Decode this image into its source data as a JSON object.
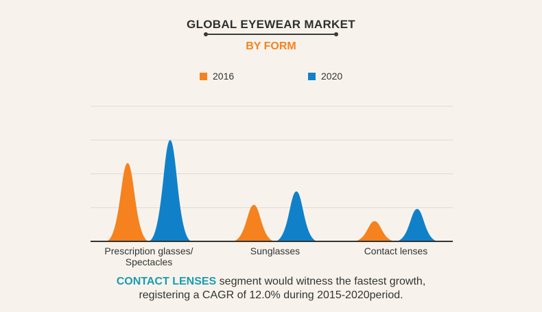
{
  "chart_data": {
    "type": "area",
    "title": "GLOBAL EYEWEAR MARKET",
    "subtitle": "BY FORM",
    "categories": [
      "Prescription glasses/ Spectacles",
      "Sunglasses",
      "Contact lenses"
    ],
    "category_lines": [
      [
        "Prescription glasses/",
        "Spectacles"
      ],
      [
        "Sunglasses"
      ],
      [
        "Contact lenses"
      ]
    ],
    "series": [
      {
        "name": "2016",
        "color": "#f5821f",
        "values": [
          58,
          27,
          15
        ]
      },
      {
        "name": "2020",
        "color": "#1081c9",
        "values": [
          75,
          37,
          24
        ]
      }
    ],
    "ylim": [
      0,
      100
    ],
    "grid": true,
    "legend_position": "top-center"
  },
  "note": {
    "highlight": "CONTACT LENSES",
    "line1_rest": " segment would witness the fastest growth,",
    "line2": "registering a CAGR of 12.0% during 2015-2020period."
  }
}
